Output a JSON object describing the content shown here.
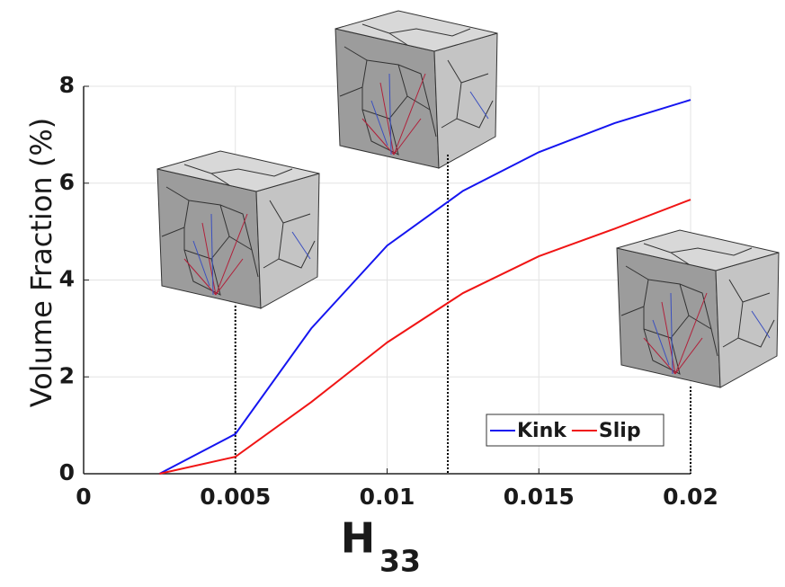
{
  "chart_data": {
    "type": "line",
    "ylabel": "Volume Fraction (%)",
    "xlabel": {
      "base": "H",
      "subscript": "33"
    },
    "x": [
      0.0025,
      0.005,
      0.0075,
      0.01,
      0.0125,
      0.015,
      0.0175,
      0.02
    ],
    "series": [
      {
        "name": "Kink",
        "color": "#1515f0",
        "values": [
          0,
          0.82,
          3.0,
          4.71,
          5.84,
          6.64,
          7.24,
          7.72
        ]
      },
      {
        "name": "Slip",
        "color": "#f01515",
        "values": [
          0,
          0.35,
          1.48,
          2.71,
          3.73,
          4.49,
          5.06,
          5.66
        ]
      }
    ],
    "xlim": [
      0,
      0.02
    ],
    "ylim": [
      0,
      8
    ],
    "xticks": [
      0,
      0.005,
      0.01,
      0.015,
      0.02
    ],
    "yticks": [
      0,
      2,
      4,
      6,
      8
    ],
    "grid": true,
    "legend": "lower right",
    "markers": [
      0.005,
      0.012,
      0.02
    ]
  }
}
